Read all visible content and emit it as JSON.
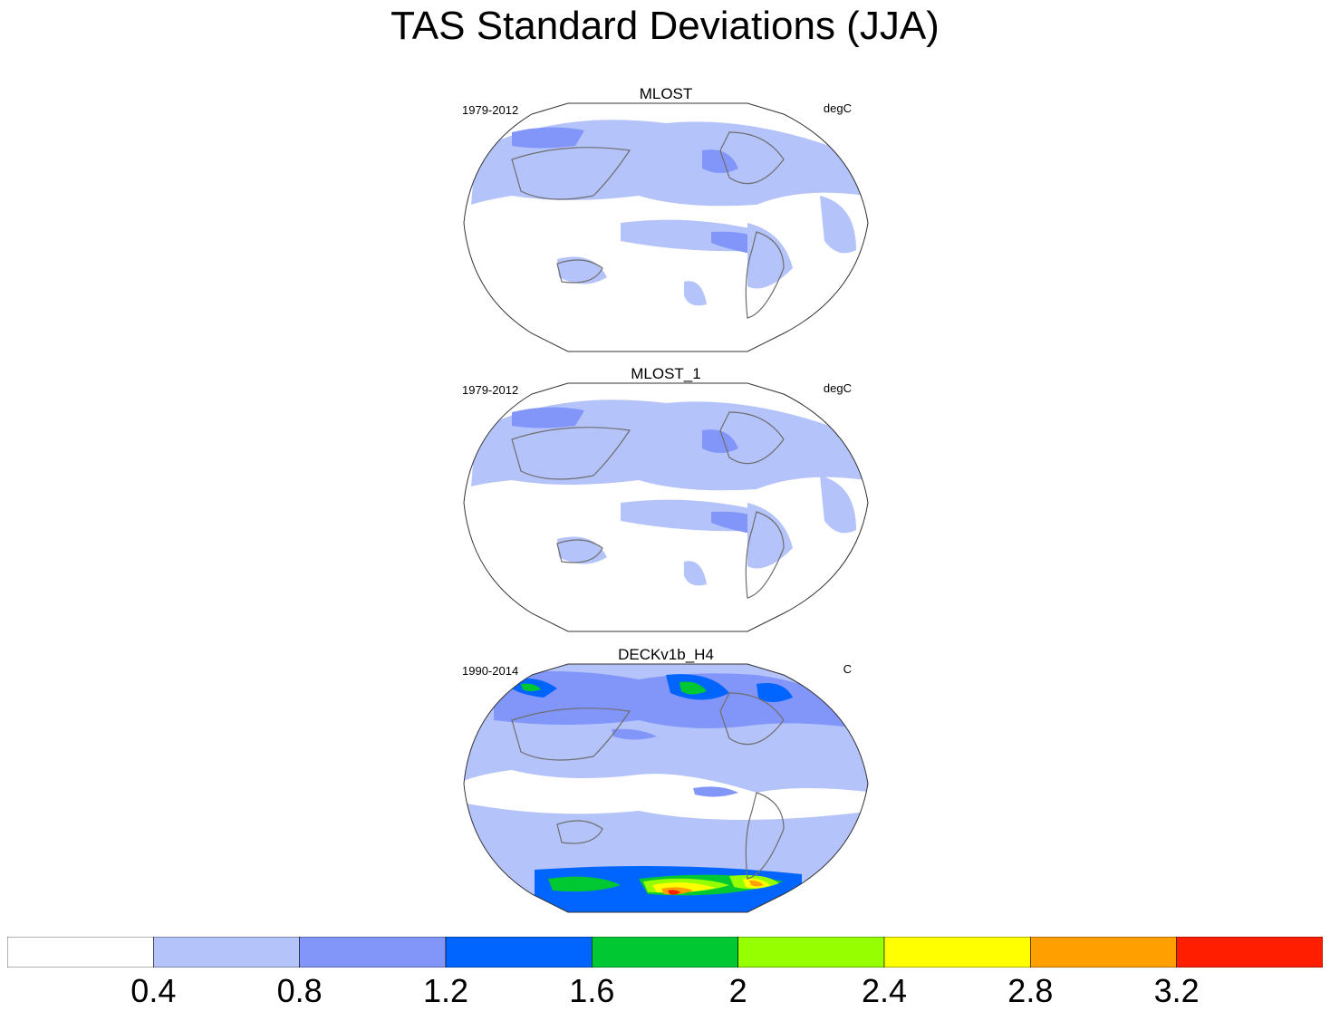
{
  "title": "TAS Standard Deviations (JJA)",
  "panels": [
    {
      "name": "MLOST",
      "period": "1979-2012",
      "units": "degC"
    },
    {
      "name": "MLOST_1",
      "period": "1979-2012",
      "units": "degC"
    },
    {
      "name": "DECKv1b_H4",
      "period": "1990-2014",
      "units": "C"
    }
  ],
  "colorbar": {
    "labels": [
      "0.4",
      "0.8",
      "1.2",
      "1.6",
      "2",
      "2.4",
      "2.8",
      "3.2"
    ],
    "colors": [
      "#ffffff",
      "#b4c3fa",
      "#8296fa",
      "#0064ff",
      "#00c832",
      "#96ff00",
      "#ffff00",
      "#ffa000",
      "#ff1e00"
    ]
  }
}
